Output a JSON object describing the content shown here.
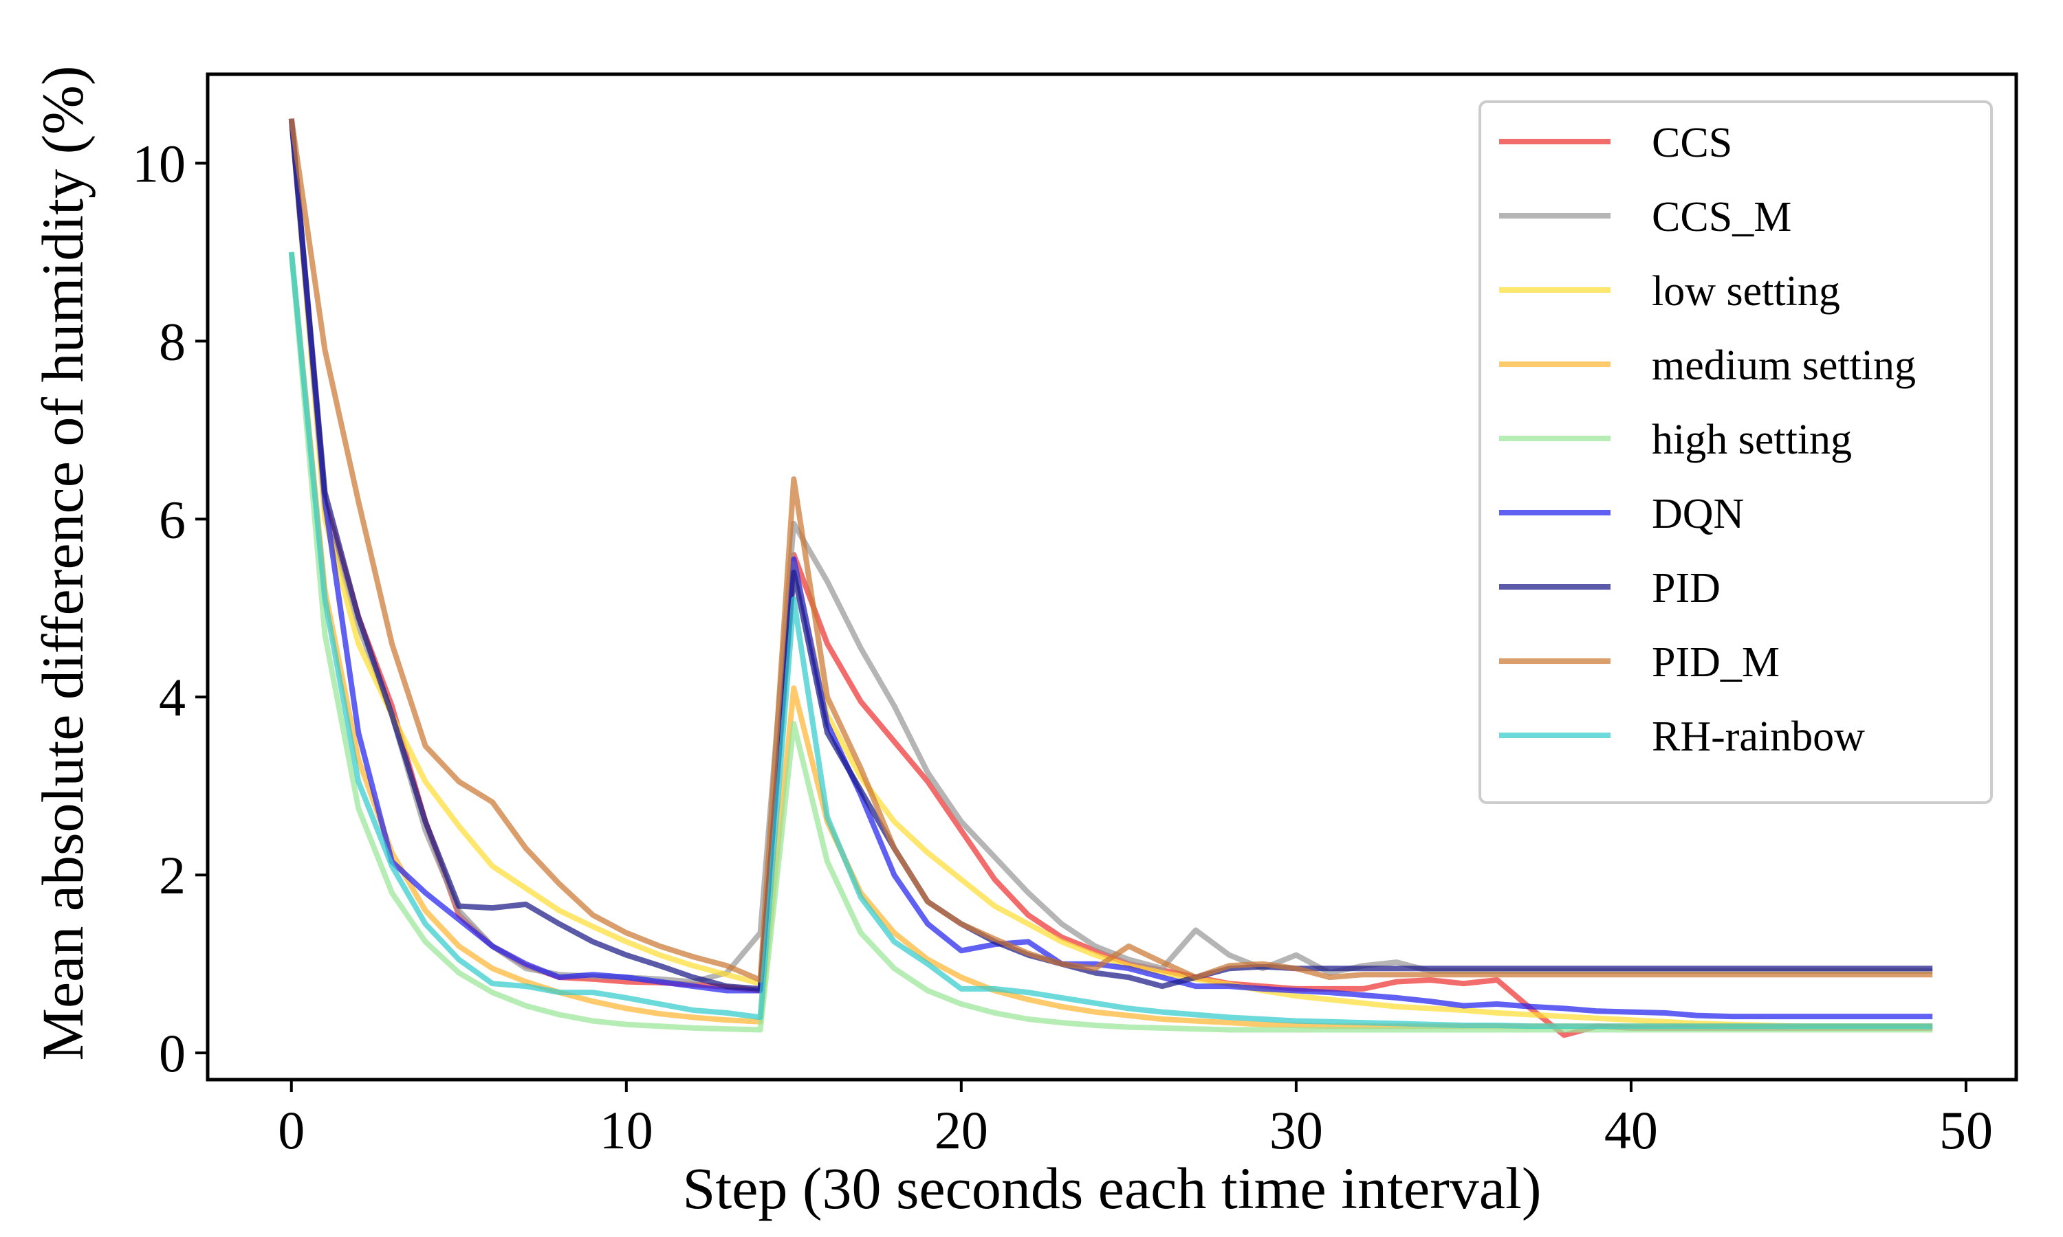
{
  "chart_data": {
    "type": "line",
    "title": "",
    "xlabel": "Step (30 seconds each time interval)",
    "ylabel": "Mean absolute difference of humidity (%)",
    "xlim": [
      -2.5,
      51.5
    ],
    "ylim": [
      -0.3,
      11.0
    ],
    "xticks": [
      0,
      10,
      20,
      30,
      40,
      50
    ],
    "yticks": [
      0,
      2,
      4,
      6,
      8,
      10
    ],
    "grid": false,
    "legend_position": "top-right",
    "x": [
      0,
      1,
      2,
      3,
      4,
      5,
      6,
      7,
      8,
      9,
      10,
      11,
      12,
      13,
      14,
      15,
      16,
      17,
      18,
      19,
      20,
      21,
      22,
      23,
      24,
      25,
      26,
      27,
      28,
      29,
      30,
      31,
      32,
      33,
      34,
      35,
      36,
      37,
      38,
      39,
      40,
      41,
      42,
      43,
      44,
      45,
      46,
      47,
      48,
      49
    ],
    "series": [
      {
        "name": "CCS",
        "color": "#ee3333",
        "values": [
          10.5,
          6.2,
          4.9,
          3.9,
          2.6,
          1.55,
          1.2,
          0.98,
          0.85,
          0.83,
          0.8,
          0.79,
          0.77,
          0.74,
          0.7,
          5.6,
          4.6,
          3.95,
          3.5,
          3.05,
          2.5,
          1.95,
          1.55,
          1.3,
          1.15,
          1.0,
          0.93,
          0.85,
          0.78,
          0.75,
          0.72,
          0.72,
          0.72,
          0.8,
          0.82,
          0.78,
          0.82,
          0.5,
          0.2,
          0.3,
          0.28,
          0.28,
          0.28,
          0.28,
          0.28,
          0.28,
          0.28,
          0.28,
          0.28,
          0.28
        ]
      },
      {
        "name": "CCS_M",
        "color": "#999999",
        "values": [
          10.5,
          6.1,
          4.8,
          3.8,
          2.5,
          1.6,
          1.2,
          0.95,
          0.88,
          0.86,
          0.85,
          0.83,
          0.8,
          0.9,
          1.35,
          5.95,
          5.3,
          4.55,
          3.9,
          3.15,
          2.6,
          2.2,
          1.8,
          1.45,
          1.2,
          1.05,
          0.95,
          1.38,
          1.1,
          0.95,
          1.1,
          0.9,
          0.98,
          1.02,
          0.92,
          0.92,
          0.92,
          0.92,
          0.92,
          0.92,
          0.92,
          0.92,
          0.92,
          0.92,
          0.92,
          0.92,
          0.92,
          0.92,
          0.92,
          0.92
        ]
      },
      {
        "name": "low setting",
        "color": "#ffdd33",
        "values": [
          10.5,
          6.0,
          4.6,
          3.8,
          3.05,
          2.55,
          2.1,
          1.85,
          1.6,
          1.42,
          1.25,
          1.1,
          0.98,
          0.88,
          0.78,
          5.5,
          3.8,
          3.1,
          2.6,
          2.25,
          1.95,
          1.65,
          1.45,
          1.25,
          1.1,
          0.98,
          0.9,
          0.83,
          0.77,
          0.7,
          0.64,
          0.6,
          0.56,
          0.52,
          0.5,
          0.48,
          0.45,
          0.43,
          0.41,
          0.39,
          0.37,
          0.35,
          0.33,
          0.32,
          0.31,
          0.3,
          0.3,
          0.3,
          0.3,
          0.3
        ]
      },
      {
        "name": "medium setting",
        "color": "#ffb533",
        "values": [
          9.0,
          5.2,
          3.3,
          2.25,
          1.6,
          1.2,
          0.95,
          0.8,
          0.68,
          0.58,
          0.5,
          0.44,
          0.4,
          0.37,
          0.35,
          4.1,
          2.6,
          1.8,
          1.35,
          1.05,
          0.85,
          0.7,
          0.6,
          0.52,
          0.46,
          0.42,
          0.38,
          0.36,
          0.34,
          0.32,
          0.31,
          0.3,
          0.3,
          0.3,
          0.3,
          0.3,
          0.3,
          0.3,
          0.3,
          0.3,
          0.3,
          0.3,
          0.3,
          0.3,
          0.3,
          0.3,
          0.3,
          0.3,
          0.3,
          0.3
        ]
      },
      {
        "name": "high setting",
        "color": "#99e699",
        "values": [
          9.0,
          4.7,
          2.75,
          1.8,
          1.25,
          0.9,
          0.68,
          0.53,
          0.43,
          0.36,
          0.32,
          0.3,
          0.28,
          0.27,
          0.26,
          3.7,
          2.15,
          1.35,
          0.95,
          0.7,
          0.55,
          0.45,
          0.38,
          0.34,
          0.31,
          0.29,
          0.28,
          0.27,
          0.26,
          0.26,
          0.26,
          0.26,
          0.26,
          0.26,
          0.26,
          0.26,
          0.26,
          0.26,
          0.26,
          0.26,
          0.26,
          0.26,
          0.26,
          0.26,
          0.26,
          0.26,
          0.26,
          0.26,
          0.26,
          0.26
        ]
      },
      {
        "name": "DQN",
        "color": "#2222ee",
        "values": [
          10.5,
          6.2,
          3.6,
          2.15,
          1.8,
          1.5,
          1.2,
          1.0,
          0.85,
          0.88,
          0.85,
          0.8,
          0.75,
          0.7,
          0.7,
          5.55,
          3.7,
          2.9,
          2.0,
          1.45,
          1.15,
          1.22,
          1.25,
          1.0,
          1.0,
          0.95,
          0.85,
          0.75,
          0.75,
          0.72,
          0.7,
          0.68,
          0.65,
          0.62,
          0.58,
          0.53,
          0.55,
          0.52,
          0.5,
          0.47,
          0.46,
          0.45,
          0.42,
          0.41,
          0.41,
          0.41,
          0.41,
          0.41,
          0.41,
          0.41
        ]
      },
      {
        "name": "PID",
        "color": "#1a1a88",
        "values": [
          10.5,
          6.3,
          4.9,
          3.8,
          2.6,
          1.65,
          1.63,
          1.67,
          1.45,
          1.25,
          1.1,
          0.98,
          0.85,
          0.75,
          0.72,
          5.4,
          3.6,
          2.95,
          2.3,
          1.7,
          1.45,
          1.25,
          1.1,
          1.0,
          0.9,
          0.85,
          0.75,
          0.85,
          0.95,
          0.97,
          0.95,
          0.95,
          0.95,
          0.95,
          0.95,
          0.95,
          0.95,
          0.95,
          0.95,
          0.95,
          0.95,
          0.95,
          0.95,
          0.95,
          0.95,
          0.95,
          0.95,
          0.95,
          0.95,
          0.95
        ]
      },
      {
        "name": "PID_M",
        "color": "#cc7733",
        "values": [
          10.5,
          7.9,
          6.2,
          4.6,
          3.45,
          3.05,
          2.82,
          2.3,
          1.9,
          1.55,
          1.35,
          1.2,
          1.08,
          0.98,
          0.82,
          6.45,
          4.0,
          3.2,
          2.3,
          1.7,
          1.45,
          1.28,
          1.12,
          1.0,
          0.95,
          1.2,
          1.02,
          0.85,
          0.98,
          1.0,
          0.95,
          0.85,
          0.88,
          0.88,
          0.88,
          0.88,
          0.88,
          0.88,
          0.88,
          0.88,
          0.88,
          0.88,
          0.88,
          0.88,
          0.88,
          0.88,
          0.88,
          0.88,
          0.88,
          0.88
        ]
      },
      {
        "name": "RH-rainbow",
        "color": "#33cccc",
        "values": [
          9.0,
          5.1,
          3.05,
          2.1,
          1.45,
          1.05,
          0.78,
          0.75,
          0.68,
          0.68,
          0.62,
          0.55,
          0.48,
          0.45,
          0.4,
          5.1,
          2.65,
          1.75,
          1.25,
          1.0,
          0.72,
          0.72,
          0.68,
          0.62,
          0.56,
          0.5,
          0.46,
          0.43,
          0.4,
          0.38,
          0.36,
          0.35,
          0.34,
          0.33,
          0.32,
          0.31,
          0.31,
          0.3,
          0.3,
          0.3,
          0.3,
          0.3,
          0.3,
          0.3,
          0.3,
          0.3,
          0.3,
          0.3,
          0.3,
          0.3
        ]
      }
    ]
  }
}
